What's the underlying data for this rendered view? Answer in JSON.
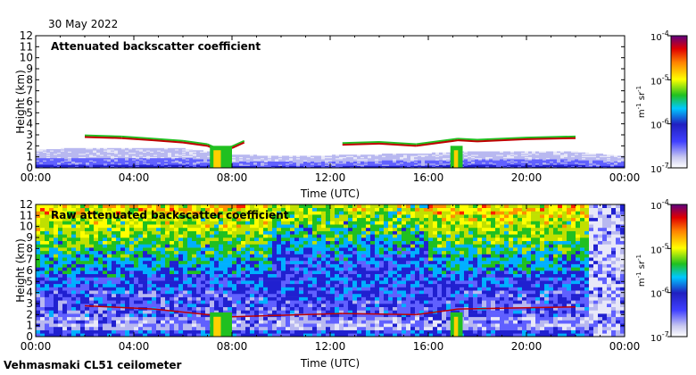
{
  "date": "30 May 2022",
  "footer": "Vehmasmaki CL51 ceilometer",
  "colorbar_ticks": [
    {
      "exp": -7,
      "label": "10",
      "sup": "-7"
    },
    {
      "exp": -6,
      "label": "10",
      "sup": "-6"
    },
    {
      "exp": -5,
      "label": "10",
      "sup": "-5"
    },
    {
      "exp": -4,
      "label": "10",
      "sup": "-4"
    }
  ],
  "colorbar_unit": {
    "m": "m",
    "m_sup": "-1",
    "sr": "sr",
    "sr_sup": "-1"
  },
  "chart_data": [
    {
      "type": "heatmap",
      "title": "Attenuated backscatter coefficient",
      "xlabel": "Time (UTC)",
      "ylabel": "Height (km)",
      "xlim": [
        0,
        24
      ],
      "ylim": [
        0,
        12
      ],
      "xticks": [
        0,
        4,
        8,
        12,
        16,
        20,
        24
      ],
      "xtick_labels": [
        "00:00",
        "04:00",
        "08:00",
        "12:00",
        "16:00",
        "20:00",
        "00:00"
      ],
      "yticks": [
        0,
        1,
        2,
        3,
        4,
        5,
        6,
        7,
        8,
        9,
        10,
        11,
        12
      ],
      "colorbar": {
        "scale": "log",
        "range": [
          1e-07,
          0.0001
        ],
        "unit": "m-1 sr-1"
      },
      "features": {
        "surface_layer_top_km": [
          [
            0,
            1.6
          ],
          [
            2,
            1.8
          ],
          [
            6,
            1.7
          ],
          [
            8,
            1.2
          ],
          [
            10,
            1.0
          ],
          [
            12,
            1.1
          ],
          [
            16,
            1.3
          ],
          [
            18,
            1.5
          ],
          [
            22,
            1.4
          ],
          [
            24,
            1.0
          ]
        ],
        "cloud_base_km": [
          [
            2.0,
            2.8
          ],
          [
            3.5,
            2.7
          ],
          [
            4.8,
            2.5
          ],
          [
            6.0,
            2.3
          ],
          [
            7.0,
            2.0
          ],
          [
            7.5,
            1.5
          ],
          [
            8.0,
            1.8
          ],
          [
            8.5,
            2.3
          ],
          [
            12.5,
            2.1
          ],
          [
            14.0,
            2.2
          ],
          [
            15.5,
            2.0
          ],
          [
            17.2,
            2.5
          ],
          [
            18.0,
            2.4
          ],
          [
            20.0,
            2.6
          ],
          [
            22.0,
            2.7
          ]
        ],
        "precipitation_periods_h": [
          [
            7.1,
            8.0
          ],
          [
            16.9,
            17.4
          ]
        ]
      }
    },
    {
      "type": "heatmap",
      "title": "Raw attenuated backscatter coefficient",
      "xlabel": "Time (UTC)",
      "ylabel": "Height (km)",
      "xlim": [
        0,
        24
      ],
      "ylim": [
        0,
        12
      ],
      "xticks": [
        0,
        4,
        8,
        12,
        16,
        20,
        24
      ],
      "xtick_labels": [
        "00:00",
        "04:00",
        "08:00",
        "12:00",
        "16:00",
        "20:00",
        "00:00"
      ],
      "yticks": [
        0,
        1,
        2,
        3,
        4,
        5,
        6,
        7,
        8,
        9,
        10,
        11,
        12
      ],
      "colorbar": {
        "scale": "log",
        "range": [
          1e-07,
          0.0001
        ],
        "unit": "m-1 sr-1"
      },
      "features": {
        "noise_high_above_km": 6,
        "cloud_base_km": [
          [
            2.0,
            2.8
          ],
          [
            4.8,
            2.5
          ],
          [
            7.0,
            2.0
          ],
          [
            8.0,
            1.8
          ],
          [
            12.5,
            2.1
          ],
          [
            15.5,
            2.0
          ],
          [
            17.2,
            2.5
          ],
          [
            22.0,
            2.7
          ]
        ],
        "precipitation_periods_h": [
          [
            7.1,
            8.0
          ],
          [
            16.9,
            17.4
          ]
        ]
      }
    }
  ]
}
